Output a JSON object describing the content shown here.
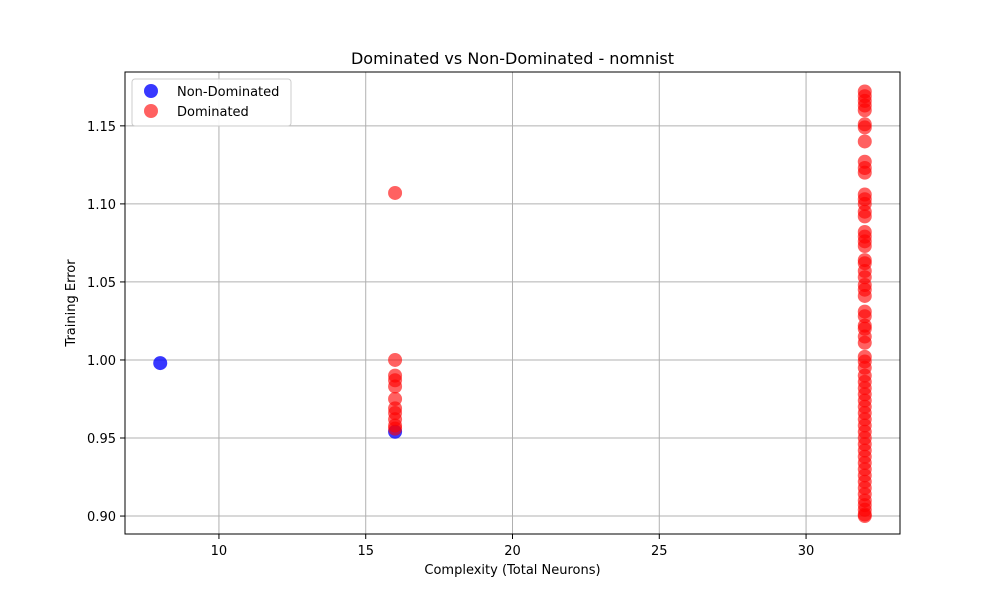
{
  "chart_data": {
    "type": "scatter",
    "title": "Dominated vs Non-Dominated - nomnist",
    "xlabel": "Complexity (Total Neurons)",
    "ylabel": "Training Error",
    "xlim": [
      6.8,
      33.2
    ],
    "ylim": [
      0.8885,
      1.1845
    ],
    "xticks": [
      10,
      15,
      20,
      25,
      30
    ],
    "xtick_labels": [
      "10",
      "15",
      "20",
      "25",
      "30"
    ],
    "yticks": [
      0.9,
      0.95,
      1.0,
      1.05,
      1.1,
      1.15
    ],
    "ytick_labels": [
      "0.90",
      "0.95",
      "1.00",
      "1.05",
      "1.10",
      "1.15"
    ],
    "grid": true,
    "legend_position": "top-left",
    "series": [
      {
        "name": "Non-Dominated",
        "color": "#0000ff",
        "points": [
          [
            8,
            0.998
          ],
          [
            16,
            0.954
          ]
        ]
      },
      {
        "name": "Dominated",
        "color": "#ff0000",
        "points": [
          [
            16,
            1.107
          ],
          [
            16,
            1.0
          ],
          [
            16,
            0.99
          ],
          [
            16,
            0.987
          ],
          [
            16,
            0.983
          ],
          [
            16,
            0.975
          ],
          [
            16,
            0.969
          ],
          [
            16,
            0.966
          ],
          [
            16,
            0.962
          ],
          [
            16,
            0.958
          ],
          [
            16,
            0.956
          ],
          [
            32,
            1.172
          ],
          [
            32,
            1.169
          ],
          [
            32,
            1.166
          ],
          [
            32,
            1.163
          ],
          [
            32,
            1.16
          ],
          [
            32,
            1.151
          ],
          [
            32,
            1.149
          ],
          [
            32,
            1.14
          ],
          [
            32,
            1.127
          ],
          [
            32,
            1.123
          ],
          [
            32,
            1.12
          ],
          [
            32,
            1.106
          ],
          [
            32,
            1.103
          ],
          [
            32,
            1.1
          ],
          [
            32,
            1.095
          ],
          [
            32,
            1.092
          ],
          [
            32,
            1.082
          ],
          [
            32,
            1.079
          ],
          [
            32,
            1.076
          ],
          [
            32,
            1.073
          ],
          [
            32,
            1.064
          ],
          [
            32,
            1.062
          ],
          [
            32,
            1.057
          ],
          [
            32,
            1.053
          ],
          [
            32,
            1.048
          ],
          [
            32,
            1.045
          ],
          [
            32,
            1.041
          ],
          [
            32,
            1.031
          ],
          [
            32,
            1.028
          ],
          [
            32,
            1.022
          ],
          [
            32,
            1.02
          ],
          [
            32,
            1.015
          ],
          [
            32,
            1.011
          ],
          [
            32,
            1.002
          ],
          [
            32,
            0.999
          ],
          [
            32,
            0.995
          ],
          [
            32,
            0.99
          ],
          [
            32,
            0.986
          ],
          [
            32,
            0.982
          ],
          [
            32,
            0.978
          ],
          [
            32,
            0.974
          ],
          [
            32,
            0.97
          ],
          [
            32,
            0.966
          ],
          [
            32,
            0.962
          ],
          [
            32,
            0.958
          ],
          [
            32,
            0.954
          ],
          [
            32,
            0.95
          ],
          [
            32,
            0.946
          ],
          [
            32,
            0.942
          ],
          [
            32,
            0.938
          ],
          [
            32,
            0.934
          ],
          [
            32,
            0.93
          ],
          [
            32,
            0.926
          ],
          [
            32,
            0.922
          ],
          [
            32,
            0.918
          ],
          [
            32,
            0.914
          ],
          [
            32,
            0.91
          ],
          [
            32,
            0.907
          ],
          [
            32,
            0.904
          ],
          [
            32,
            0.901
          ],
          [
            32,
            0.9
          ]
        ]
      }
    ]
  }
}
